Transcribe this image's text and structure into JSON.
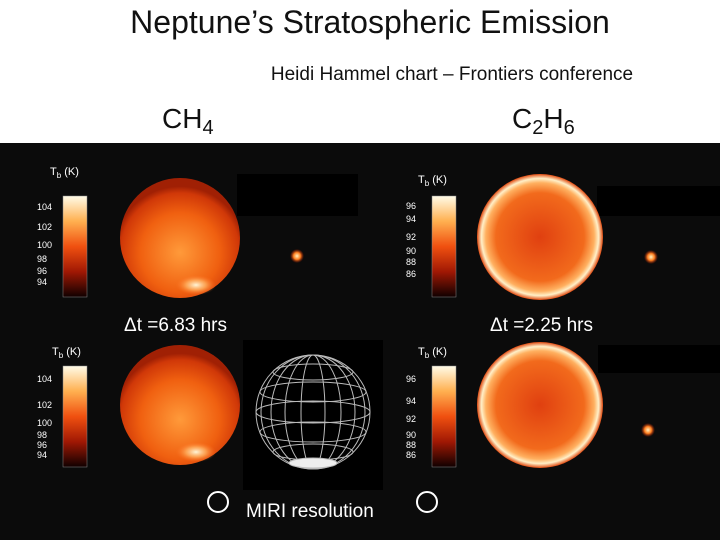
{
  "title": "Neptune’s Stratospheric Emission",
  "subtitle": "Heidi Hammel chart – Frontiers conference",
  "columns": [
    {
      "formula": [
        "CH",
        "4"
      ]
    },
    {
      "formula": [
        "C",
        "2",
        "H",
        "6"
      ]
    }
  ],
  "colorbar_label": {
    "symbol": "T",
    "sub": "b",
    "unit": "(K)"
  },
  "colorbars": [
    {
      "ticks": [
        "104",
        "102",
        "100",
        "98",
        "96",
        "94"
      ]
    },
    {
      "ticks": [
        "96",
        "94",
        "92",
        "90",
        "88",
        "86"
      ]
    },
    {
      "ticks": [
        "104",
        "102",
        "100",
        "98",
        "96",
        "94"
      ]
    },
    {
      "ticks": [
        "96",
        "94",
        "92",
        "90",
        "88",
        "86"
      ]
    }
  ],
  "time_labels": [
    "Δt =6.83 hrs",
    "Δt =2.25 hrs"
  ],
  "footer": "MIRI resolution"
}
